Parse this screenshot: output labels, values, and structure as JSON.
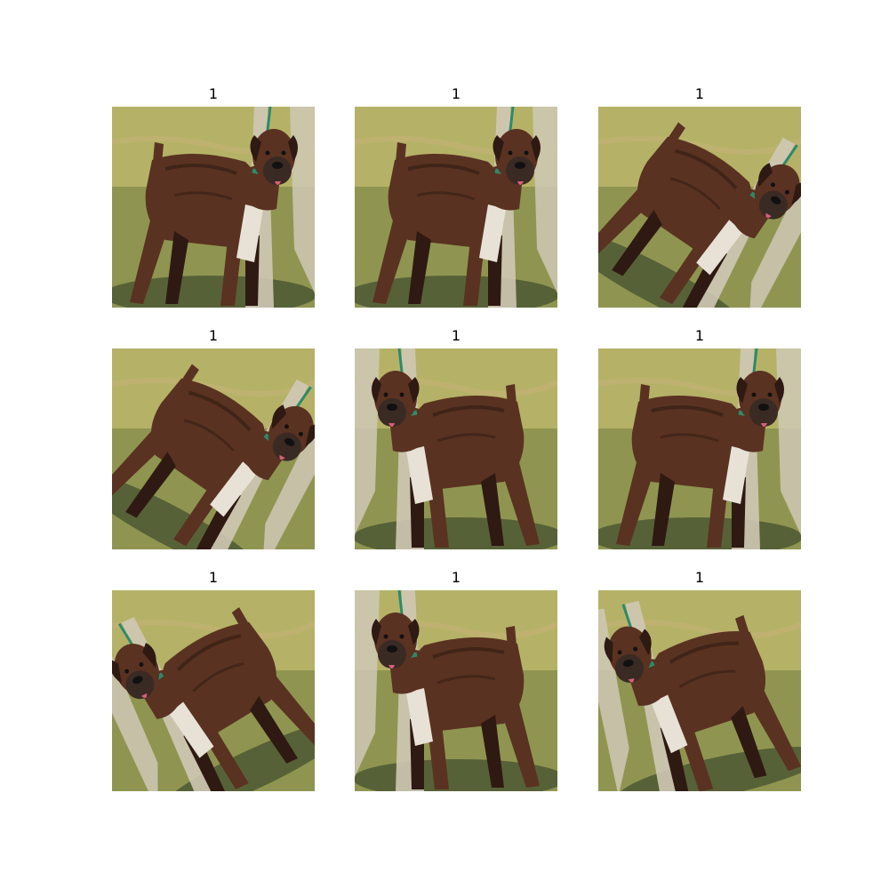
{
  "grid": {
    "panels": [
      {
        "title": "1",
        "flip": false,
        "rotate": 0
      },
      {
        "title": "1",
        "flip": false,
        "rotate": 0
      },
      {
        "title": "1",
        "flip": false,
        "rotate": 28
      },
      {
        "title": "1",
        "flip": false,
        "rotate": 28
      },
      {
        "title": "1",
        "flip": true,
        "rotate": 0
      },
      {
        "title": "1",
        "flip": false,
        "rotate": 0
      },
      {
        "title": "1",
        "flip": true,
        "rotate": -25
      },
      {
        "title": "1",
        "flip": true,
        "rotate": 0
      },
      {
        "title": "1",
        "flip": true,
        "rotate": -12
      }
    ]
  },
  "colors": {
    "grass_light": "#b5b267",
    "grass_dark": "#6f7d3e",
    "shadow": "#3f4b2c",
    "dog_body": "#5a3221",
    "dog_dark": "#2e1a12",
    "dog_face": "#3a2a24",
    "chest": "#e8e2d6",
    "leash": "#2d8a6a",
    "pants": "#cfc8b5"
  }
}
